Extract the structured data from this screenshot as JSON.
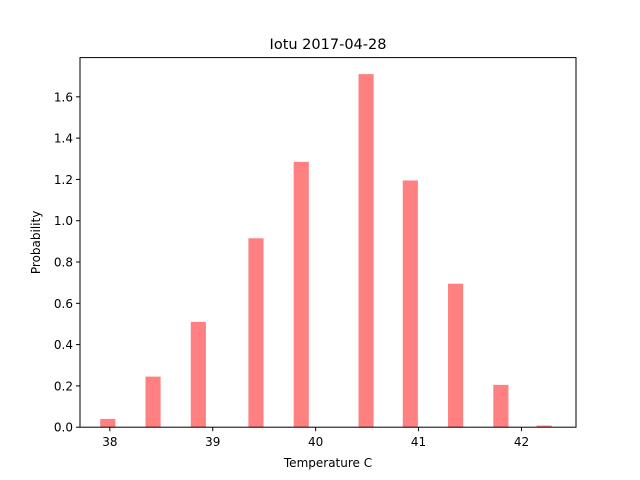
{
  "chart_data": {
    "type": "bar",
    "title": "Iotu 2017-04-28",
    "xlabel": "Temperature C",
    "ylabel": "Probability",
    "xlim": [
      37.71,
      42.53
    ],
    "ylim": [
      0,
      1.79
    ],
    "xticks": [
      38,
      39,
      40,
      41,
      42
    ],
    "yticks": [
      0.0,
      0.2,
      0.4,
      0.6,
      0.8,
      1.0,
      1.2,
      1.4,
      1.6
    ],
    "xtick_labels": [
      "38",
      "39",
      "40",
      "41",
      "42"
    ],
    "ytick_labels": [
      "0.0",
      "0.2",
      "0.4",
      "0.6",
      "0.8",
      "1.0",
      "1.2",
      "1.4",
      "1.6"
    ],
    "bar_width": 0.147,
    "bar_color": "#ff8080",
    "grid": false,
    "x": [
      37.98,
      38.42,
      38.86,
      39.42,
      39.86,
      40.49,
      40.92,
      41.36,
      41.8,
      42.22
    ],
    "values": [
      0.04,
      0.245,
      0.51,
      0.915,
      1.285,
      1.71,
      1.195,
      0.695,
      0.205,
      0.008
    ]
  }
}
